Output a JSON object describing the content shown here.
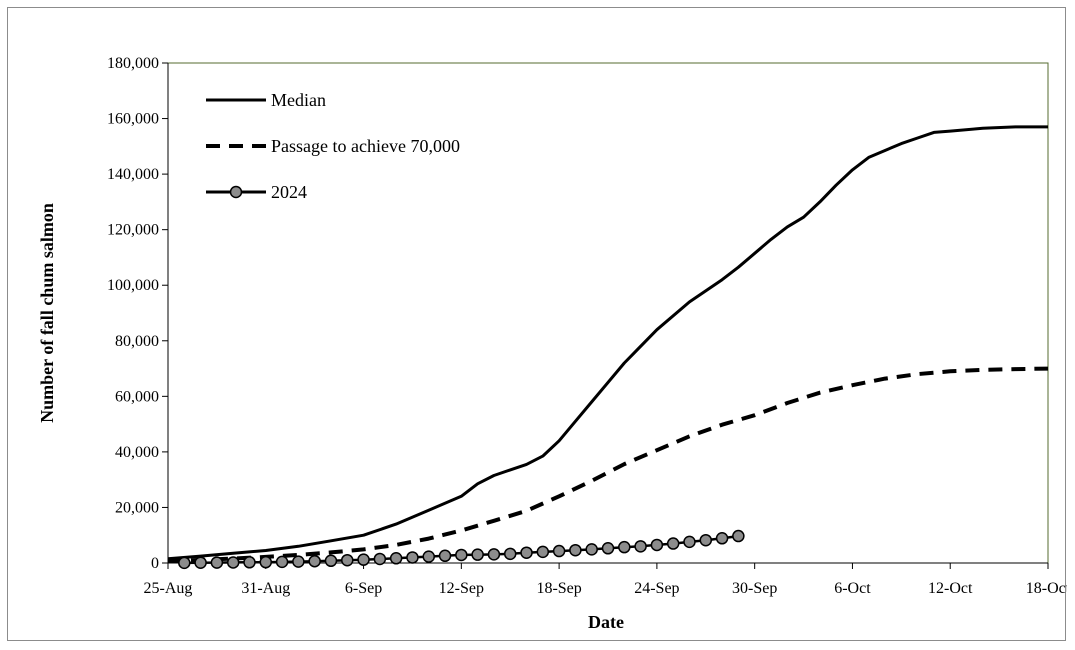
{
  "chart_data": {
    "type": "line",
    "title": "",
    "xlabel": "Date",
    "ylabel": "Number of fall chum salmon",
    "ylim": [
      0,
      180000
    ],
    "y_ticks": [
      0,
      20000,
      40000,
      60000,
      80000,
      100000,
      120000,
      140000,
      160000,
      180000
    ],
    "y_tick_labels": [
      "0",
      "20,000",
      "40,000",
      "60,000",
      "80,000",
      "100,000",
      "120,000",
      "140,000",
      "160,000",
      "180,000"
    ],
    "x_ticks": [
      "25-Aug",
      "31-Aug",
      "6-Sep",
      "12-Sep",
      "18-Sep",
      "24-Sep",
      "30-Sep",
      "6-Oct",
      "12-Oct",
      "18-Oct"
    ],
    "x_range": [
      "25-Aug",
      "18-Oct"
    ],
    "grid": false,
    "legend_position": "top-left",
    "colors": {
      "line": "#000000",
      "marker_fill": "#8c8c8c",
      "plot_border": "#556b2f",
      "frame_border": "#8c8c8c"
    },
    "series": [
      {
        "name": "Median",
        "style": "solid",
        "x": [
          "25-Aug",
          "27-Aug",
          "29-Aug",
          "31-Aug",
          "2-Sep",
          "4-Sep",
          "6-Sep",
          "8-Sep",
          "10-Sep",
          "12-Sep",
          "13-Sep",
          "14-Sep",
          "15-Sep",
          "16-Sep",
          "17-Sep",
          "18-Sep",
          "19-Sep",
          "20-Sep",
          "22-Sep",
          "24-Sep",
          "26-Sep",
          "28-Sep",
          "29-Sep",
          "30-Sep",
          "1-Oct",
          "2-Oct",
          "3-Oct",
          "4-Oct",
          "5-Oct",
          "6-Oct",
          "7-Oct",
          "8-Oct",
          "9-Oct",
          "10-Oct",
          "11-Oct",
          "12-Oct",
          "14-Oct",
          "16-Oct",
          "18-Oct"
        ],
        "y": [
          1500,
          2500,
          3500,
          4500,
          6000,
          8000,
          10000,
          14000,
          19000,
          24000,
          28500,
          31500,
          33500,
          35500,
          38500,
          44000,
          51000,
          58000,
          72000,
          84000,
          94000,
          102000,
          106500,
          111500,
          116500,
          121000,
          124500,
          130000,
          136000,
          141500,
          146000,
          148500,
          151000,
          153000,
          155000,
          155500,
          156500,
          157000,
          157000
        ]
      },
      {
        "name": "Passage to achieve 70,000",
        "style": "dashed",
        "x": [
          "25-Aug",
          "27-Aug",
          "29-Aug",
          "31-Aug",
          "2-Sep",
          "4-Sep",
          "6-Sep",
          "8-Sep",
          "10-Sep",
          "12-Sep",
          "14-Sep",
          "16-Sep",
          "18-Sep",
          "20-Sep",
          "22-Sep",
          "24-Sep",
          "26-Sep",
          "28-Sep",
          "30-Sep",
          "2-Oct",
          "4-Oct",
          "6-Oct",
          "8-Oct",
          "10-Oct",
          "12-Oct",
          "14-Oct",
          "16-Oct",
          "18-Oct"
        ],
        "y": [
          700,
          1100,
          1600,
          2200,
          2900,
          3800,
          4900,
          6500,
          8800,
          11700,
          15200,
          18800,
          24000,
          29600,
          35600,
          40600,
          45600,
          49800,
          53200,
          57600,
          61300,
          64000,
          66400,
          68000,
          69000,
          69500,
          69800,
          70000
        ]
      },
      {
        "name": "2024",
        "style": "solid-marker",
        "x": [
          "26-Aug",
          "27-Aug",
          "28-Aug",
          "29-Aug",
          "30-Aug",
          "31-Aug",
          "1-Sep",
          "2-Sep",
          "3-Sep",
          "4-Sep",
          "5-Sep",
          "6-Sep",
          "7-Sep",
          "8-Sep",
          "9-Sep",
          "10-Sep",
          "11-Sep",
          "12-Sep",
          "13-Sep",
          "14-Sep",
          "15-Sep",
          "16-Sep",
          "17-Sep",
          "18-Sep",
          "19-Sep",
          "20-Sep",
          "21-Sep",
          "22-Sep",
          "23-Sep",
          "24-Sep",
          "25-Sep",
          "26-Sep",
          "27-Sep",
          "28-Sep",
          "29-Sep"
        ],
        "y": [
          50,
          100,
          150,
          200,
          250,
          300,
          400,
          500,
          650,
          800,
          1000,
          1200,
          1450,
          1700,
          2000,
          2300,
          2600,
          2900,
          3000,
          3100,
          3300,
          3700,
          4000,
          4300,
          4600,
          4900,
          5300,
          5700,
          6000,
          6500,
          7000,
          7600,
          8200,
          8900,
          9700
        ]
      }
    ]
  }
}
